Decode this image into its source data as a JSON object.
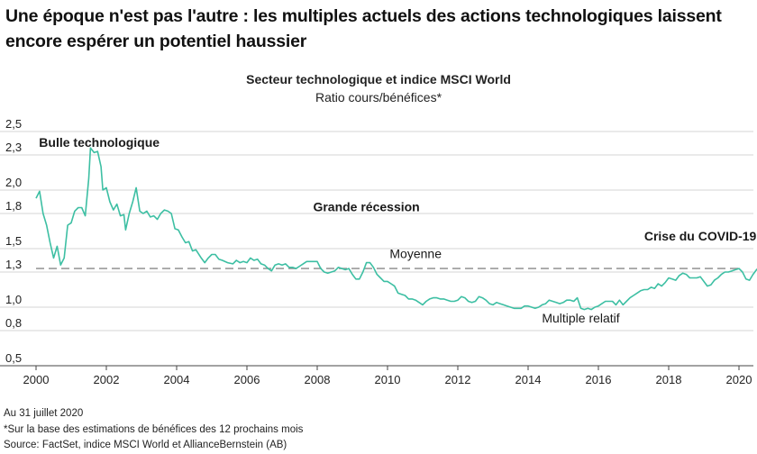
{
  "headline": "Une époque n'est pas l'autre : les multiples actuels des actions technologiques laissent encore espérer un potentiel haussier",
  "footer": {
    "date": "Au 31 juillet 2020",
    "note": "*Sur la base des estimations de bénéfices des 12 prochains mois",
    "source": "Source: FactSet, indice MSCI World et AllianceBernstein (AB)"
  },
  "chart_data": {
    "type": "line",
    "title": "Secteur technologique et indice MSCI World",
    "subtitle": "Ratio cours/bénéfices*",
    "xlabel": "",
    "ylabel": "",
    "xlim": [
      2000,
      2020.6
    ],
    "ylim": [
      0.5,
      2.5
    ],
    "x_ticks": [
      2000,
      2002,
      2004,
      2006,
      2008,
      2010,
      2012,
      2014,
      2016,
      2018,
      2020
    ],
    "y_ticks": [
      0.5,
      0.8,
      1.0,
      1.3,
      1.5,
      1.8,
      2.0,
      2.3,
      2.5
    ],
    "y_tick_labels": [
      "0,5",
      "0,8",
      "1,0",
      "1,3",
      "1,5",
      "1,8",
      "2,0",
      "2,3",
      "2,5"
    ],
    "grid": "horizontal",
    "colors": {
      "line": "#3dbfa3",
      "average": "#9a9a9a",
      "grid": "#d4d4d4"
    },
    "average": {
      "label": "Moyenne",
      "value": 1.33
    },
    "annotations": [
      {
        "text": "Bulle technologique",
        "x": 2001.8,
        "y": 2.37,
        "bold": true
      },
      {
        "text": "Grande récession",
        "x": 2009.4,
        "y": 1.82,
        "bold": true
      },
      {
        "text": "Crise du COVID-19",
        "x": 2018.9,
        "y": 1.57,
        "bold": true
      },
      {
        "text": "Moyenne",
        "x": 2010.8,
        "y": 1.42,
        "bold": false
      },
      {
        "text": "Multiple relatif",
        "x": 2015.5,
        "y": 0.87,
        "bold": false
      }
    ],
    "series": [
      {
        "name": "Multiple relatif",
        "points": [
          [
            2000.0,
            1.93
          ],
          [
            2000.1,
            1.99
          ],
          [
            2000.2,
            1.8
          ],
          [
            2000.3,
            1.7
          ],
          [
            2000.4,
            1.55
          ],
          [
            2000.5,
            1.42
          ],
          [
            2000.6,
            1.52
          ],
          [
            2000.7,
            1.36
          ],
          [
            2000.8,
            1.42
          ],
          [
            2000.9,
            1.7
          ],
          [
            2001.0,
            1.72
          ],
          [
            2001.1,
            1.82
          ],
          [
            2001.2,
            1.85
          ],
          [
            2001.3,
            1.85
          ],
          [
            2001.4,
            1.78
          ],
          [
            2001.5,
            2.1
          ],
          [
            2001.55,
            2.36
          ],
          [
            2001.65,
            2.32
          ],
          [
            2001.75,
            2.33
          ],
          [
            2001.85,
            2.2
          ],
          [
            2001.9,
            2.0
          ],
          [
            2002.0,
            2.02
          ],
          [
            2002.1,
            1.9
          ],
          [
            2002.2,
            1.83
          ],
          [
            2002.3,
            1.88
          ],
          [
            2002.4,
            1.78
          ],
          [
            2002.5,
            1.79
          ],
          [
            2002.55,
            1.66
          ],
          [
            2002.65,
            1.8
          ],
          [
            2002.75,
            1.9
          ],
          [
            2002.85,
            2.02
          ],
          [
            2002.95,
            1.82
          ],
          [
            2003.05,
            1.8
          ],
          [
            2003.15,
            1.82
          ],
          [
            2003.25,
            1.77
          ],
          [
            2003.35,
            1.78
          ],
          [
            2003.45,
            1.75
          ],
          [
            2003.55,
            1.8
          ],
          [
            2003.65,
            1.83
          ],
          [
            2003.75,
            1.82
          ],
          [
            2003.85,
            1.8
          ],
          [
            2003.95,
            1.67
          ],
          [
            2004.05,
            1.66
          ],
          [
            2004.15,
            1.6
          ],
          [
            2004.25,
            1.55
          ],
          [
            2004.35,
            1.56
          ],
          [
            2004.45,
            1.48
          ],
          [
            2004.55,
            1.49
          ],
          [
            2004.7,
            1.42
          ],
          [
            2004.8,
            1.38
          ],
          [
            2004.9,
            1.42
          ],
          [
            2005.0,
            1.45
          ],
          [
            2005.1,
            1.45
          ],
          [
            2005.2,
            1.41
          ],
          [
            2005.3,
            1.4
          ],
          [
            2005.45,
            1.38
          ],
          [
            2005.6,
            1.37
          ],
          [
            2005.7,
            1.4
          ],
          [
            2005.8,
            1.38
          ],
          [
            2005.9,
            1.39
          ],
          [
            2006.0,
            1.38
          ],
          [
            2006.1,
            1.42
          ],
          [
            2006.2,
            1.4
          ],
          [
            2006.3,
            1.41
          ],
          [
            2006.4,
            1.37
          ],
          [
            2006.5,
            1.36
          ],
          [
            2006.6,
            1.33
          ],
          [
            2006.7,
            1.31
          ],
          [
            2006.8,
            1.36
          ],
          [
            2006.9,
            1.37
          ],
          [
            2007.0,
            1.36
          ],
          [
            2007.1,
            1.37
          ],
          [
            2007.2,
            1.34
          ],
          [
            2007.3,
            1.34
          ],
          [
            2007.4,
            1.33
          ],
          [
            2007.5,
            1.35
          ],
          [
            2007.6,
            1.37
          ],
          [
            2007.7,
            1.39
          ],
          [
            2007.8,
            1.39
          ],
          [
            2007.9,
            1.39
          ],
          [
            2008.0,
            1.39
          ],
          [
            2008.1,
            1.33
          ],
          [
            2008.2,
            1.3
          ],
          [
            2008.3,
            1.29
          ],
          [
            2008.4,
            1.3
          ],
          [
            2008.5,
            1.31
          ],
          [
            2008.6,
            1.34
          ],
          [
            2008.7,
            1.33
          ],
          [
            2008.8,
            1.32
          ],
          [
            2008.9,
            1.33
          ],
          [
            2009.0,
            1.28
          ],
          [
            2009.1,
            1.24
          ],
          [
            2009.2,
            1.24
          ],
          [
            2009.3,
            1.3
          ],
          [
            2009.4,
            1.38
          ],
          [
            2009.5,
            1.38
          ],
          [
            2009.6,
            1.34
          ],
          [
            2009.7,
            1.28
          ],
          [
            2009.8,
            1.25
          ],
          [
            2009.9,
            1.22
          ],
          [
            2010.0,
            1.22
          ],
          [
            2010.1,
            1.2
          ],
          [
            2010.2,
            1.18
          ],
          [
            2010.3,
            1.12
          ],
          [
            2010.4,
            1.11
          ],
          [
            2010.5,
            1.1
          ],
          [
            2010.6,
            1.07
          ],
          [
            2010.7,
            1.07
          ],
          [
            2010.8,
            1.06
          ],
          [
            2010.9,
            1.04
          ],
          [
            2011.0,
            1.02
          ],
          [
            2011.1,
            1.05
          ],
          [
            2011.2,
            1.07
          ],
          [
            2011.3,
            1.08
          ],
          [
            2011.4,
            1.08
          ],
          [
            2011.5,
            1.07
          ],
          [
            2011.6,
            1.07
          ],
          [
            2011.7,
            1.06
          ],
          [
            2011.8,
            1.05
          ],
          [
            2011.9,
            1.05
          ],
          [
            2012.0,
            1.06
          ],
          [
            2012.1,
            1.09
          ],
          [
            2012.2,
            1.08
          ],
          [
            2012.3,
            1.05
          ],
          [
            2012.4,
            1.04
          ],
          [
            2012.5,
            1.05
          ],
          [
            2012.6,
            1.09
          ],
          [
            2012.7,
            1.08
          ],
          [
            2012.8,
            1.06
          ],
          [
            2012.9,
            1.03
          ],
          [
            2013.0,
            1.02
          ],
          [
            2013.1,
            1.04
          ],
          [
            2013.2,
            1.03
          ],
          [
            2013.3,
            1.02
          ],
          [
            2013.4,
            1.01
          ],
          [
            2013.5,
            1.0
          ],
          [
            2013.6,
            0.99
          ],
          [
            2013.7,
            0.99
          ],
          [
            2013.8,
            0.99
          ],
          [
            2013.9,
            1.01
          ],
          [
            2014.0,
            1.01
          ],
          [
            2014.1,
            1.0
          ],
          [
            2014.2,
            0.99
          ],
          [
            2014.3,
            1.0
          ],
          [
            2014.4,
            1.02
          ],
          [
            2014.5,
            1.03
          ],
          [
            2014.6,
            1.06
          ],
          [
            2014.7,
            1.05
          ],
          [
            2014.8,
            1.04
          ],
          [
            2014.9,
            1.03
          ],
          [
            2015.0,
            1.04
          ],
          [
            2015.1,
            1.06
          ],
          [
            2015.2,
            1.06
          ],
          [
            2015.3,
            1.05
          ],
          [
            2015.4,
            1.08
          ],
          [
            2015.5,
            0.99
          ],
          [
            2015.6,
            0.98
          ],
          [
            2015.7,
            0.99
          ],
          [
            2015.8,
            0.98
          ],
          [
            2015.9,
            1.0
          ],
          [
            2016.0,
            1.01
          ],
          [
            2016.1,
            1.03
          ],
          [
            2016.2,
            1.05
          ],
          [
            2016.3,
            1.05
          ],
          [
            2016.4,
            1.05
          ],
          [
            2016.5,
            1.02
          ],
          [
            2016.6,
            1.06
          ],
          [
            2016.7,
            1.02
          ],
          [
            2016.8,
            1.05
          ],
          [
            2016.9,
            1.08
          ],
          [
            2017.0,
            1.1
          ],
          [
            2017.1,
            1.12
          ],
          [
            2017.2,
            1.14
          ],
          [
            2017.3,
            1.15
          ],
          [
            2017.4,
            1.15
          ],
          [
            2017.5,
            1.17
          ],
          [
            2017.6,
            1.16
          ],
          [
            2017.7,
            1.2
          ],
          [
            2017.8,
            1.18
          ],
          [
            2017.9,
            1.21
          ],
          [
            2018.0,
            1.25
          ],
          [
            2018.1,
            1.24
          ],
          [
            2018.2,
            1.23
          ],
          [
            2018.3,
            1.27
          ],
          [
            2018.4,
            1.29
          ],
          [
            2018.5,
            1.28
          ],
          [
            2018.6,
            1.25
          ],
          [
            2018.7,
            1.25
          ],
          [
            2018.8,
            1.25
          ],
          [
            2018.9,
            1.26
          ],
          [
            2019.0,
            1.22
          ],
          [
            2019.1,
            1.18
          ],
          [
            2019.2,
            1.19
          ],
          [
            2019.3,
            1.23
          ],
          [
            2019.4,
            1.25
          ],
          [
            2019.5,
            1.28
          ],
          [
            2019.6,
            1.3
          ],
          [
            2019.7,
            1.3
          ],
          [
            2019.8,
            1.31
          ],
          [
            2019.9,
            1.32
          ],
          [
            2020.0,
            1.33
          ],
          [
            2020.1,
            1.3
          ],
          [
            2020.2,
            1.24
          ],
          [
            2020.3,
            1.23
          ],
          [
            2020.4,
            1.28
          ],
          [
            2020.5,
            1.32
          ],
          [
            2020.58,
            1.34
          ]
        ]
      }
    ]
  }
}
